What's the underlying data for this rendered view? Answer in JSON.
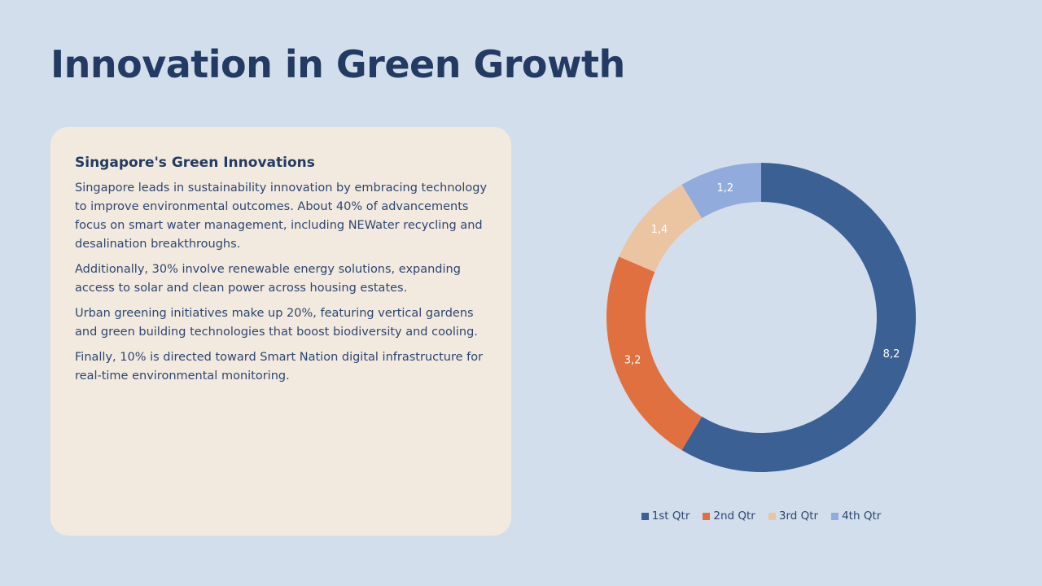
{
  "slide": {
    "title": "Innovation in Green Growth"
  },
  "card": {
    "heading": "Singapore's Green Innovations",
    "paragraphs": [
      "Singapore leads in sustainability innovation by embracing technology to improve environmental outcomes. About 40% of advancements focus on smart water management, including NEWater recycling and desalination breakthroughs.",
      "Additionally, 30% involve renewable energy solutions, expanding access to solar and clean power across housing estates.",
      "Urban greening initiatives make up 20%, featuring vertical gardens and green building technologies that boost biodiversity and cooling.",
      "Finally, 10% is directed toward Smart Nation digital infrastructure for real-time environmental monitoring."
    ]
  },
  "chart_data": {
    "type": "pie",
    "variant": "doughnut",
    "title": "",
    "categories": [
      "1st Qtr",
      "2nd Qtr",
      "3rd Qtr",
      "4th Qtr"
    ],
    "values": [
      8.2,
      3.2,
      1.4,
      1.2
    ],
    "data_labels": [
      "8,2",
      "3,2",
      "1,4",
      "1,2"
    ],
    "colors": [
      "#3a6094",
      "#e07040",
      "#ebc4a2",
      "#91acdc"
    ],
    "legend_position": "bottom"
  },
  "theme": {
    "background": "#d3deec",
    "card_background": "#f2eadf",
    "title_color": "#233b63",
    "text_color": "#2c4670"
  }
}
